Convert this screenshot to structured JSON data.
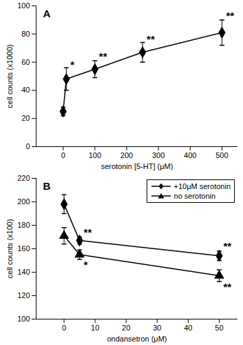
{
  "chart_data": [
    {
      "type": "line",
      "title": "A",
      "x_label": "serotonin [5-HT] (μM)",
      "y_label": "cell counts (x1000)",
      "x": [
        0,
        10,
        100,
        250,
        500
      ],
      "series": [
        {
          "color": "#000000",
          "marker": "diamond",
          "values": [
            25,
            48,
            55,
            67,
            81
          ],
          "errors": [
            3,
            8,
            6,
            7,
            9
          ]
        }
      ],
      "xlim": [
        -85,
        550
      ],
      "xticks": [
        0,
        100,
        200,
        300,
        400,
        500
      ],
      "ylim": [
        0,
        100
      ],
      "yticks": [
        0,
        20,
        40,
        60,
        80,
        100
      ],
      "annotations": [
        {
          "x": 10,
          "y": 58,
          "text": "*"
        },
        {
          "x": 100,
          "y": 64,
          "text": "**"
        },
        {
          "x": 250,
          "y": 76,
          "text": "**"
        },
        {
          "x": 500,
          "y": 93,
          "text": "**"
        }
      ]
    },
    {
      "type": "line",
      "title": "B",
      "x_label": "ondansetron (μM)",
      "y_label": "cell counts (x100)",
      "x": [
        0,
        5,
        50
      ],
      "series": [
        {
          "name": "+10μM serotonin",
          "color": "#000000",
          "marker": "diamond",
          "values": [
            198,
            167,
            154
          ],
          "errors": [
            8,
            3,
            4
          ]
        },
        {
          "name": "no serotonin",
          "color": "#000000",
          "marker": "triangle",
          "values": [
            171,
            155,
            137
          ],
          "errors": [
            7,
            4,
            5
          ]
        }
      ],
      "xlim": [
        -9,
        56
      ],
      "xticks": [
        0,
        10,
        20,
        30,
        40,
        50
      ],
      "ylim": [
        100,
        220
      ],
      "yticks": [
        100,
        120,
        140,
        160,
        180,
        200,
        220
      ],
      "legend": "top-right",
      "annotations": [
        {
          "x": 5,
          "y": 174,
          "text": "**"
        },
        {
          "x": 5,
          "y": 146,
          "text": "*"
        },
        {
          "x": 50,
          "y": 162,
          "text": "**"
        },
        {
          "x": 50,
          "y": 127,
          "text": "**"
        }
      ]
    }
  ]
}
